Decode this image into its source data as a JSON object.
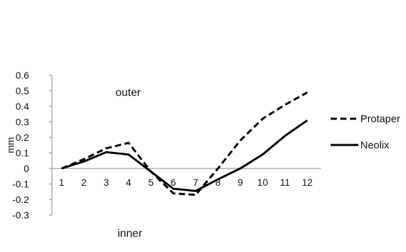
{
  "chart_data": {
    "type": "line",
    "x": [
      1,
      2,
      3,
      4,
      5,
      6,
      7,
      8,
      9,
      10,
      11,
      12
    ],
    "series": [
      {
        "name": "Protaper",
        "style": "dashed",
        "values": [
          0.0,
          0.06,
          0.13,
          0.165,
          -0.02,
          -0.16,
          -0.17,
          0.0,
          0.18,
          0.32,
          0.41,
          0.49
        ]
      },
      {
        "name": "Neolix",
        "style": "solid",
        "values": [
          0.0,
          0.045,
          0.105,
          0.09,
          -0.02,
          -0.13,
          -0.145,
          -0.07,
          0.0,
          0.09,
          0.21,
          0.31
        ]
      }
    ],
    "title": "",
    "xlabel": "",
    "ylabel": "mm",
    "ylim": [
      -0.3,
      0.6
    ],
    "yticks": [
      "0.6",
      "0.5",
      "0.4",
      "0.3",
      "0.2",
      "0.1",
      "0",
      "-0.1",
      "-0.2",
      "-0.3"
    ],
    "xticks": [
      "1",
      "2",
      "3",
      "4",
      "5",
      "6",
      "7",
      "8",
      "9",
      "10",
      "11",
      "12"
    ],
    "annotations": [
      "outer",
      "inner"
    ],
    "grid": false,
    "legend_position": "right",
    "colors": {
      "line": "#000000",
      "axis": "#888888"
    }
  }
}
